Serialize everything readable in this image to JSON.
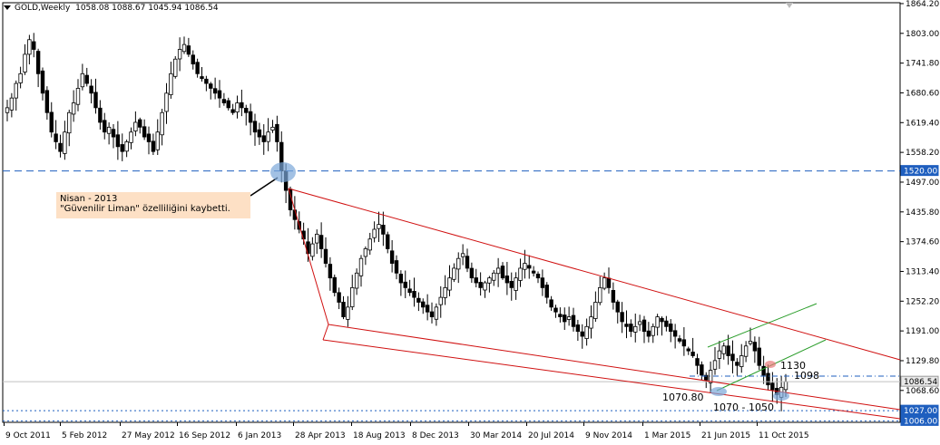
{
  "header": {
    "symbol": "GOLD,Weekly",
    "ohlc": "1058.08 1088.67 1045.94 1086.54"
  },
  "annotation": {
    "line1": "Nisan - 2013",
    "line2": "\"Güvenilir Liman\" özelliliğini kaybetti."
  },
  "chart_data": {
    "type": "candlestick",
    "title": "",
    "ylim": [
      1003,
      1866
    ],
    "price_ticks": [
      "1864.20",
      "1803.00",
      "1741.80",
      "1680.60",
      "1619.40",
      "1558.20",
      "1497.00",
      "1435.80",
      "1374.60",
      "1313.40",
      "1252.20",
      "1191.00",
      "1129.80",
      "1068.60",
      "1006.00"
    ],
    "date_ticks": [
      "9 Oct 2011",
      "5 Feb 2012",
      "27 May 2012",
      "16 Sep 2012",
      "6 Jan 2013",
      "28 Apr 2013",
      "18 Aug 2013",
      "8 Dec 2013",
      "30 Mar 2014",
      "20 Jul 2014",
      "9 Nov 2014",
      "1 Mar 2015",
      "21 Jun 2015",
      "11 Oct 2015"
    ],
    "highlight_labels": [
      "1520.00",
      "1086.54",
      "1027.00",
      "1006.00"
    ],
    "levels": {
      "support_dashed": 1520,
      "resistance_dashdot": 1098,
      "current": 1086.54,
      "dotted_a": 1027,
      "dotted_b": 1006
    },
    "level_labels": [
      "1130",
      "1098",
      "1070.80",
      "1070 - 1050"
    ],
    "series": [
      {
        "values": [
          1650,
          1670,
          1700,
          1720,
          1760,
          1790,
          1770,
          1720,
          1680,
          1640,
          1600,
          1580,
          1560,
          1600,
          1640,
          1660,
          1690,
          1720,
          1700,
          1680,
          1650,
          1620,
          1600,
          1610,
          1590,
          1570,
          1560,
          1580,
          1600,
          1620,
          1610,
          1590,
          1580,
          1560,
          1600,
          1640,
          1680,
          1720,
          1750,
          1770,
          1780,
          1760,
          1740,
          1720,
          1710,
          1700,
          1690,
          1680,
          1670,
          1660,
          1650,
          1640,
          1660,
          1650,
          1640,
          1620,
          1600,
          1590,
          1580,
          1600,
          1610,
          1580,
          1520,
          1480,
          1440,
          1420,
          1400,
          1380,
          1350,
          1370,
          1390,
          1360,
          1330,
          1300,
          1270,
          1250,
          1220,
          1240,
          1280,
          1310,
          1340,
          1360,
          1380,
          1400,
          1410,
          1390,
          1360,
          1330,
          1310,
          1290,
          1280,
          1270,
          1260,
          1250,
          1240,
          1230,
          1220,
          1240,
          1260,
          1280,
          1300,
          1320,
          1340,
          1350,
          1320,
          1300,
          1290,
          1280,
          1290,
          1300,
          1310,
          1320,
          1300,
          1290,
          1280,
          1300,
          1320,
          1330,
          1320,
          1310,
          1300,
          1280,
          1260,
          1240,
          1230,
          1220,
          1210,
          1220,
          1200,
          1190,
          1180,
          1200,
          1220,
          1250,
          1280,
          1300,
          1280,
          1250,
          1230,
          1210,
          1200,
          1190,
          1200,
          1210,
          1190,
          1180,
          1200,
          1220,
          1210,
          1200,
          1190,
          1180,
          1170,
          1160,
          1150,
          1140,
          1120,
          1100,
          1090,
          1110,
          1130,
          1150,
          1160,
          1140,
          1130,
          1120,
          1140,
          1160,
          1170,
          1150,
          1120,
          1100,
          1080,
          1070,
          1060,
          1075,
          1086.54
        ]
      }
    ]
  }
}
